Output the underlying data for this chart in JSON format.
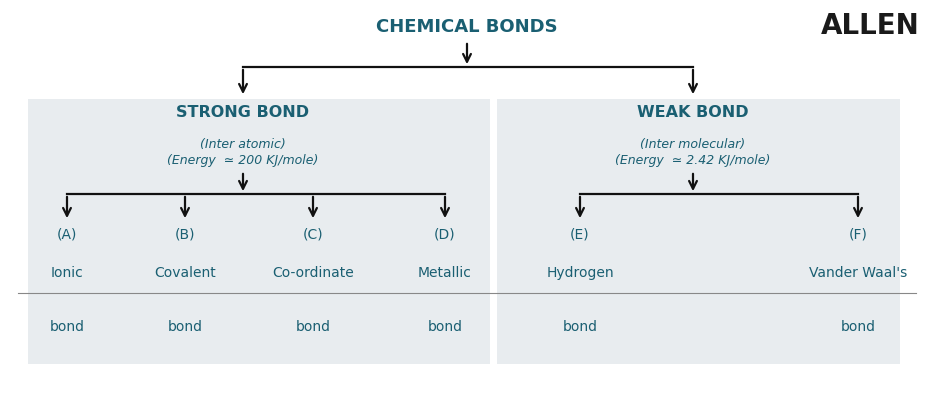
{
  "background_color": "#ffffff",
  "bg_light": "#e8ecef",
  "text_color": "#1a5f72",
  "arrow_color": "#111111",
  "allen_text": "ALLEN",
  "title": "CHEMICAL BONDS",
  "strong_label": "STRONG BOND",
  "weak_label": "WEAK BOND",
  "strong_sub1": "(Inter atomic)",
  "strong_sub2": "(Energy  ≃ 200 KJ/mole)",
  "weak_sub1": "(Inter molecular)",
  "weak_sub2": "(Energy  ≃ 2.42 KJ/mole)",
  "leaf_letters": [
    "(A)",
    "(B)",
    "(C)",
    "(D)",
    "(E)",
    "(F)"
  ],
  "leaf_names1": [
    "Ionic",
    "Covalent",
    "Co-ordinate",
    "Metallic",
    "Hydrogen",
    "Vander Waal's"
  ],
  "leaf_names2": [
    "bond",
    "bond",
    "bond",
    "bond",
    "bond",
    "bond"
  ],
  "fig_w": 9.34,
  "fig_h": 4.02,
  "dpi": 100
}
